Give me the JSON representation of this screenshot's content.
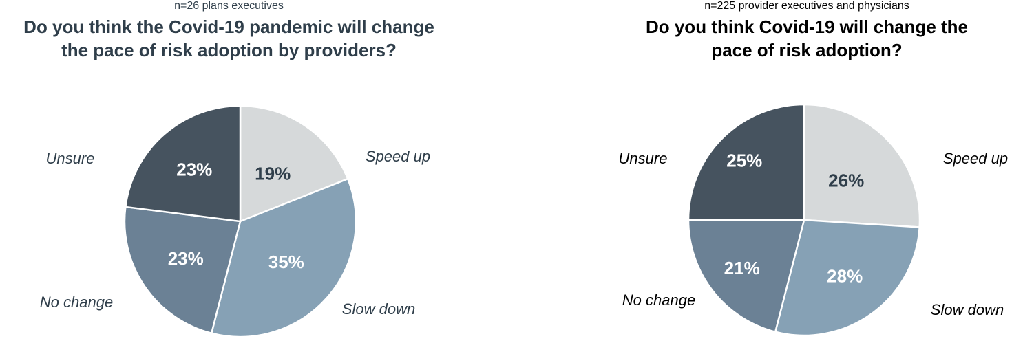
{
  "page": {
    "background": "#FFFFFF"
  },
  "chart_data": [
    {
      "type": "pie",
      "title": "Do you think the Covid-19 pandemic will change the pace of risk adoption by providers?",
      "title_lines": [
        "Do you think the Covid-19 pandemic will change",
        "the pace of risk adoption by providers?"
      ],
      "subtitle": "n=26 plans executives",
      "categories": [
        "Speed up",
        "Slow down",
        "No change",
        "Unsure"
      ],
      "values": [
        19,
        35,
        23,
        23
      ],
      "value_labels": [
        "19%",
        "35%",
        "23%",
        "23%"
      ],
      "unit": "%",
      "start_angle_deg": 0,
      "direction": "clockwise",
      "colors": [
        "#D6D9DA",
        "#86A1B5",
        "#6B8195",
        "#46535F"
      ],
      "value_label_colors": [
        "#2F3E4A",
        "#FFFFFF",
        "#FFFFFF",
        "#FFFFFF"
      ],
      "value_label_radius": [
        0.5,
        0.53,
        0.57,
        0.6
      ],
      "slice_border_color": "#FFFFFF",
      "text_color": "#2F3E4A",
      "legend": "outside-labels",
      "grid": false
    },
    {
      "type": "pie",
      "title": "Do you think Covid-19 will change the pace of risk adoption?",
      "title_lines": [
        "Do you think Covid-19 will change the",
        "pace of risk adoption?"
      ],
      "subtitle": "n=225 provider executives and physicians",
      "categories": [
        "Speed up",
        "Slow down",
        "No change",
        "Unsure"
      ],
      "values": [
        26,
        28,
        21,
        25
      ],
      "value_labels": [
        "26%",
        "28%",
        "21%",
        "25%"
      ],
      "unit": "%",
      "start_angle_deg": 0,
      "direction": "clockwise",
      "colors": [
        "#D6D9DA",
        "#86A1B5",
        "#6B8195",
        "#46535F"
      ],
      "value_label_colors": [
        "#2F3E4A",
        "#FFFFFF",
        "#FFFFFF",
        "#FFFFFF"
      ],
      "value_label_radius": [
        0.5,
        0.6,
        0.68,
        0.73
      ],
      "slice_border_color": "#FFFFFF",
      "text_color": "#000000",
      "legend": "outside-labels",
      "grid": false
    }
  ]
}
